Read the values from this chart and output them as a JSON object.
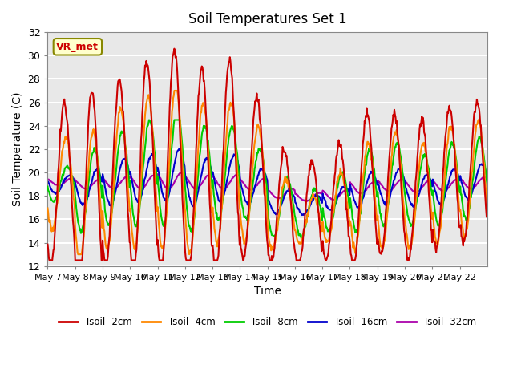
{
  "title": "Soil Temperatures Set 1",
  "xlabel": "Time",
  "ylabel": "Soil Temperature (C)",
  "ylim": [
    12,
    32
  ],
  "yticks": [
    12,
    14,
    16,
    18,
    20,
    22,
    24,
    26,
    28,
    30,
    32
  ],
  "xtick_labels": [
    "May 7",
    "May 8",
    "May 9",
    "May 10",
    "May 11",
    "May 12",
    "May 13",
    "May 14",
    "May 15",
    "May 16",
    "May 17",
    "May 18",
    "May 19",
    "May 20",
    "May 21",
    "May 22"
  ],
  "colors": {
    "Tsoil -2cm": "#cc0000",
    "Tsoil -4cm": "#ff8800",
    "Tsoil -8cm": "#00cc00",
    "Tsoil -16cm": "#0000cc",
    "Tsoil -32cm": "#aa00aa"
  },
  "lw": 1.5,
  "plot_bg_color": "#e8e8e8",
  "grid_color": "#ffffff",
  "annotation_text": "VR_met",
  "annotation_color": "#cc0000",
  "annotation_bg": "#ffffcc",
  "annotation_border": "#888800"
}
